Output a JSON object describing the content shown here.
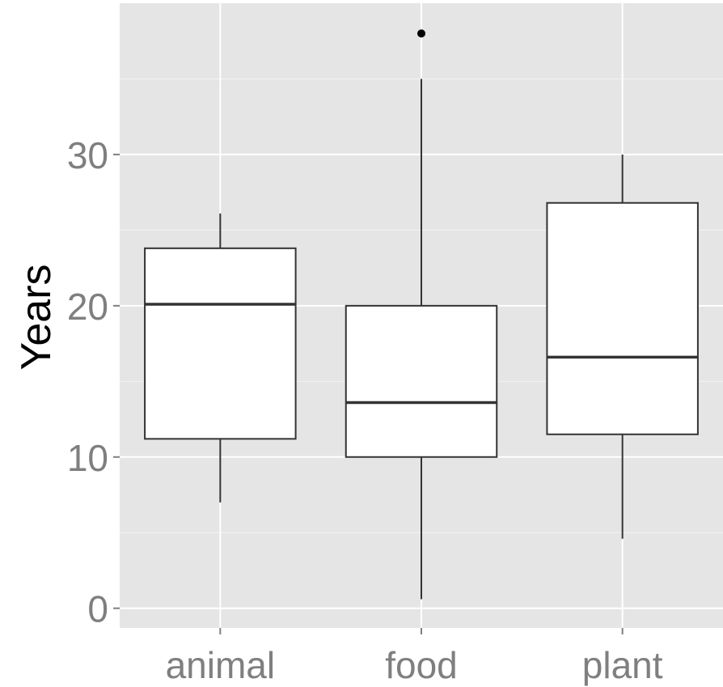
{
  "chart_data": {
    "type": "box",
    "xlabel": "",
    "ylabel": "Years",
    "ylim": [
      -1.3,
      40
    ],
    "yticks": [
      0,
      10,
      20,
      30
    ],
    "categories": [
      "animal",
      "food",
      "plant"
    ],
    "boxes": [
      {
        "category": "animal",
        "whisker_low": 7.0,
        "q1": 11.2,
        "median": 20.1,
        "q3": 23.8,
        "whisker_high": 26.1,
        "outliers": []
      },
      {
        "category": "food",
        "whisker_low": 0.6,
        "q1": 10.0,
        "median": 13.6,
        "q3": 20.0,
        "whisker_high": 35.0,
        "outliers": [
          38.0
        ]
      },
      {
        "category": "plant",
        "whisker_low": 4.6,
        "q1": 11.5,
        "median": 16.6,
        "q3": 26.8,
        "whisker_high": 30.0,
        "outliers": []
      }
    ],
    "grid": true,
    "legend": "none",
    "colors": {
      "panel": "#e5e5e5",
      "grid": "#ffffff",
      "box_fill": "#ffffff",
      "box_stroke": "#333333",
      "tick_text": "#7f7f7f",
      "title_text": "#000000"
    }
  }
}
